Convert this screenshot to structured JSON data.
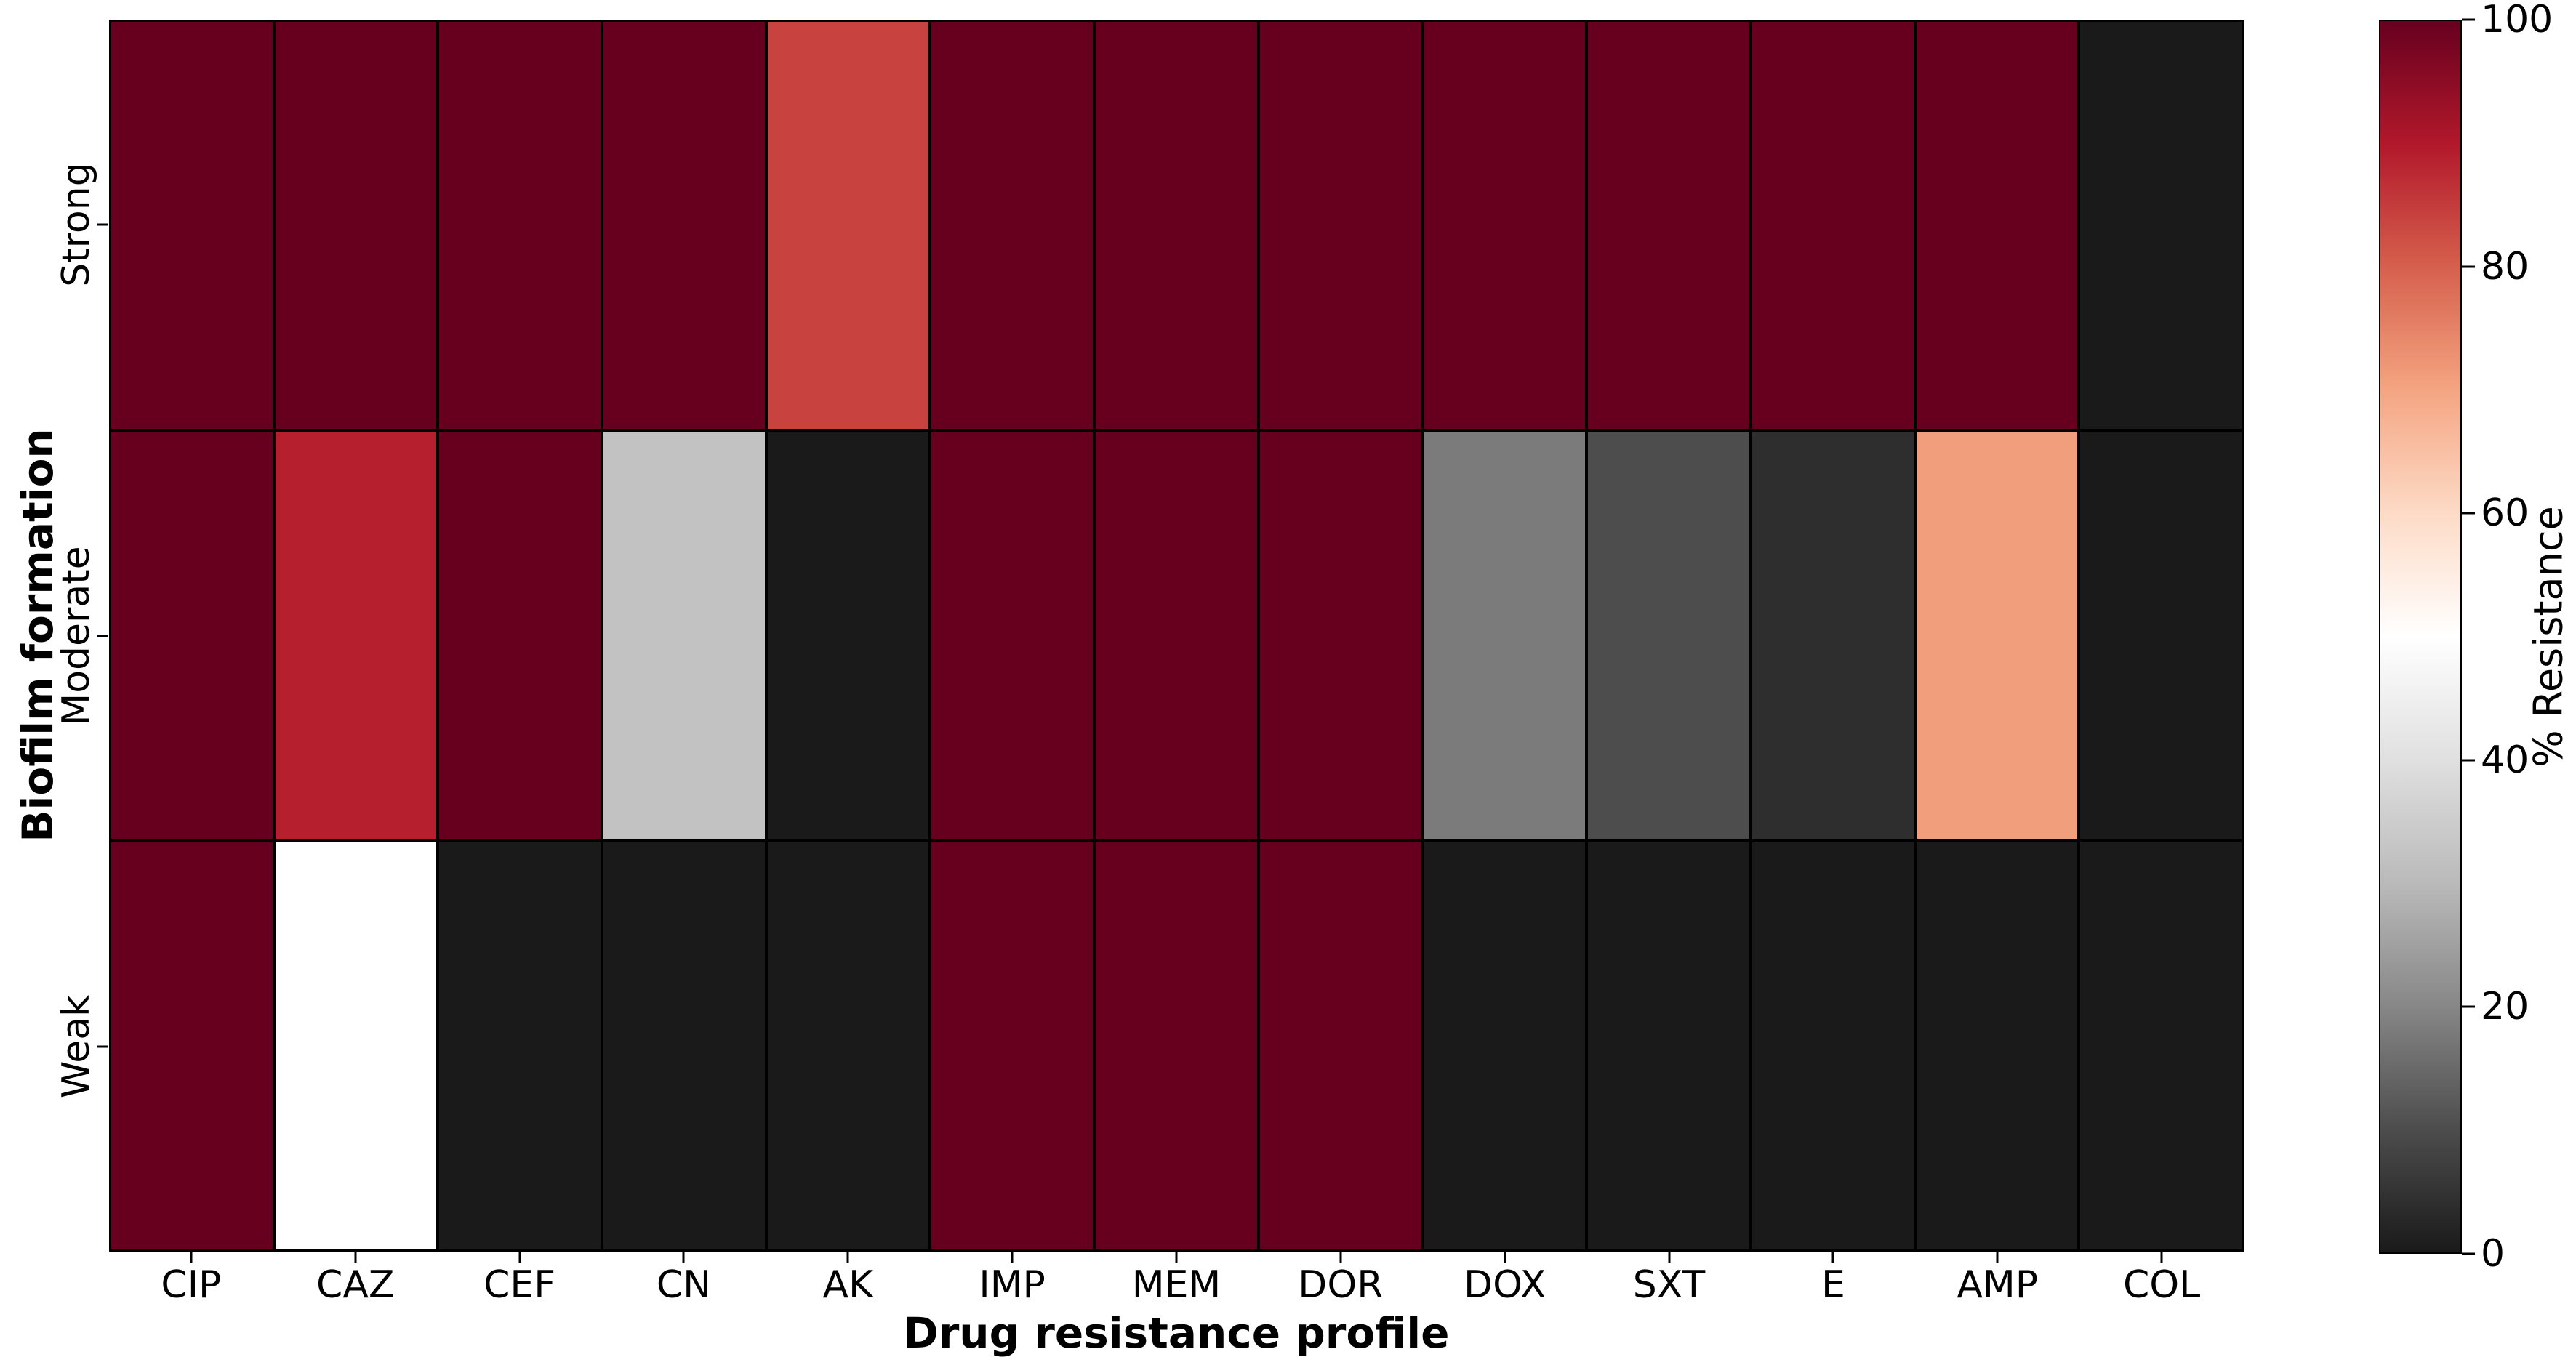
{
  "chart_data": {
    "type": "heatmap",
    "xlabel": "Drug resistance profile",
    "ylabel": "Biofilm formation",
    "columns": [
      "CIP",
      "CAZ",
      "CEF",
      "CN",
      "AK",
      "IMP",
      "MEM",
      "DOR",
      "DOX",
      "SXT",
      "E",
      "AMP",
      "COL"
    ],
    "rows": [
      "Strong",
      "Moderate",
      "Weak"
    ],
    "values": [
      [
        100,
        100,
        100,
        100,
        84,
        100,
        100,
        100,
        100,
        100,
        100,
        100,
        0
      ],
      [
        100,
        89,
        100,
        32,
        0,
        100,
        100,
        100,
        18,
        10,
        4,
        71,
        0
      ],
      [
        100,
        50,
        0,
        0,
        0,
        100,
        100,
        100,
        0,
        0,
        0,
        0,
        0
      ]
    ],
    "colorbar": {
      "label": "% Resistance",
      "min": 0,
      "max": 100,
      "ticks": [
        0,
        20,
        40,
        60,
        80,
        100
      ]
    },
    "colormap": {
      "name": "RdGy_r",
      "stops": [
        {
          "pos": 0.0,
          "color": "#1A1A1A"
        },
        {
          "pos": 0.1,
          "color": "#4D4D4D"
        },
        {
          "pos": 0.2,
          "color": "#878787"
        },
        {
          "pos": 0.3,
          "color": "#BABABA"
        },
        {
          "pos": 0.4,
          "color": "#E0E0E0"
        },
        {
          "pos": 0.5,
          "color": "#FFFFFF"
        },
        {
          "pos": 0.6,
          "color": "#FDDBC7"
        },
        {
          "pos": 0.7,
          "color": "#F4A582"
        },
        {
          "pos": 0.8,
          "color": "#D6604D"
        },
        {
          "pos": 0.9,
          "color": "#B2182B"
        },
        {
          "pos": 1.0,
          "color": "#67001F"
        }
      ]
    },
    "grid_line_color": "#000000",
    "background_color": "#FFFFFF",
    "legend_position": "right",
    "grid": "cell-borders"
  }
}
